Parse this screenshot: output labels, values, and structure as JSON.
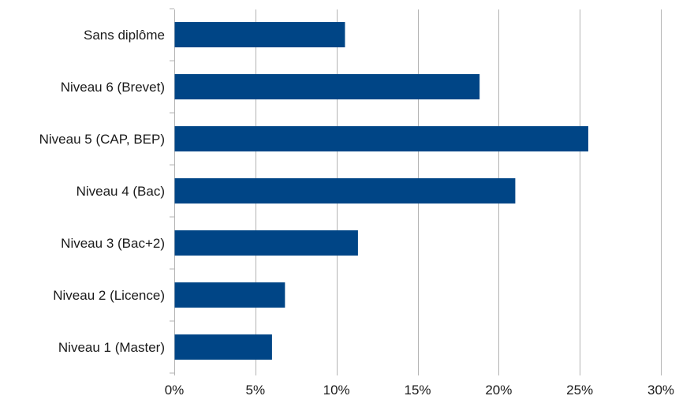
{
  "chart_data": {
    "type": "bar",
    "orientation": "horizontal",
    "title": "",
    "xlabel": "",
    "ylabel": "",
    "categories": [
      "Sans diplôme",
      "Niveau 6 (Brevet)",
      "Niveau 5 (CAP, BEP)",
      "Niveau 4 (Bac)",
      "Niveau 3 (Bac+2)",
      "Niveau 2 (Licence)",
      "Niveau 1 (Master)"
    ],
    "values": [
      10.5,
      18.8,
      25.5,
      21.0,
      11.3,
      6.8,
      6.0
    ],
    "xlim": [
      0,
      30
    ],
    "xticks": [
      0,
      5,
      10,
      15,
      20,
      25,
      30
    ],
    "tick_labels": [
      "0%",
      "5%",
      "10%",
      "15%",
      "20%",
      "25%",
      "30%"
    ],
    "grid": "vertical",
    "legend": "none",
    "colors": {
      "bar": "#004586",
      "grid": "#b3b3b3",
      "text": "#1a1a1a"
    }
  }
}
